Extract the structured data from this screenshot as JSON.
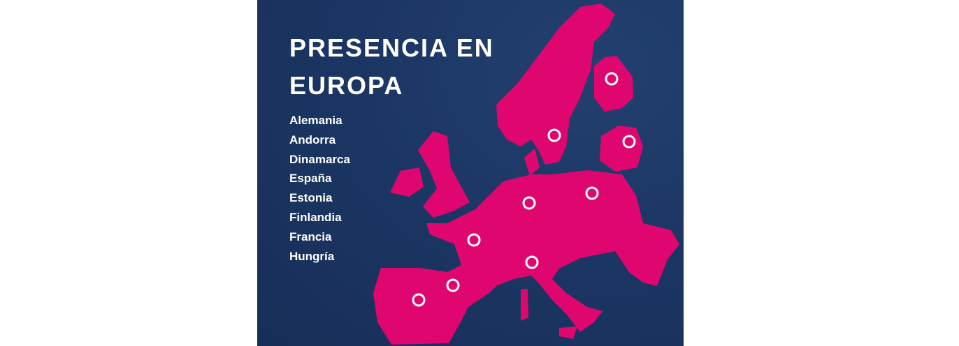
{
  "title": {
    "line1": "PRESENCIA EN",
    "line2": "EUROPA"
  },
  "countries": [
    "Alemania",
    "Andorra",
    "Dinamarca",
    "España",
    "Estonia",
    "Finlandia",
    "Francia",
    "Hungría"
  ],
  "colors": {
    "background": "#1b3562",
    "land": "#e0066f",
    "marker": "#ffffff",
    "text": "#ffffff"
  },
  "marker_icon": "ring-location-marker"
}
